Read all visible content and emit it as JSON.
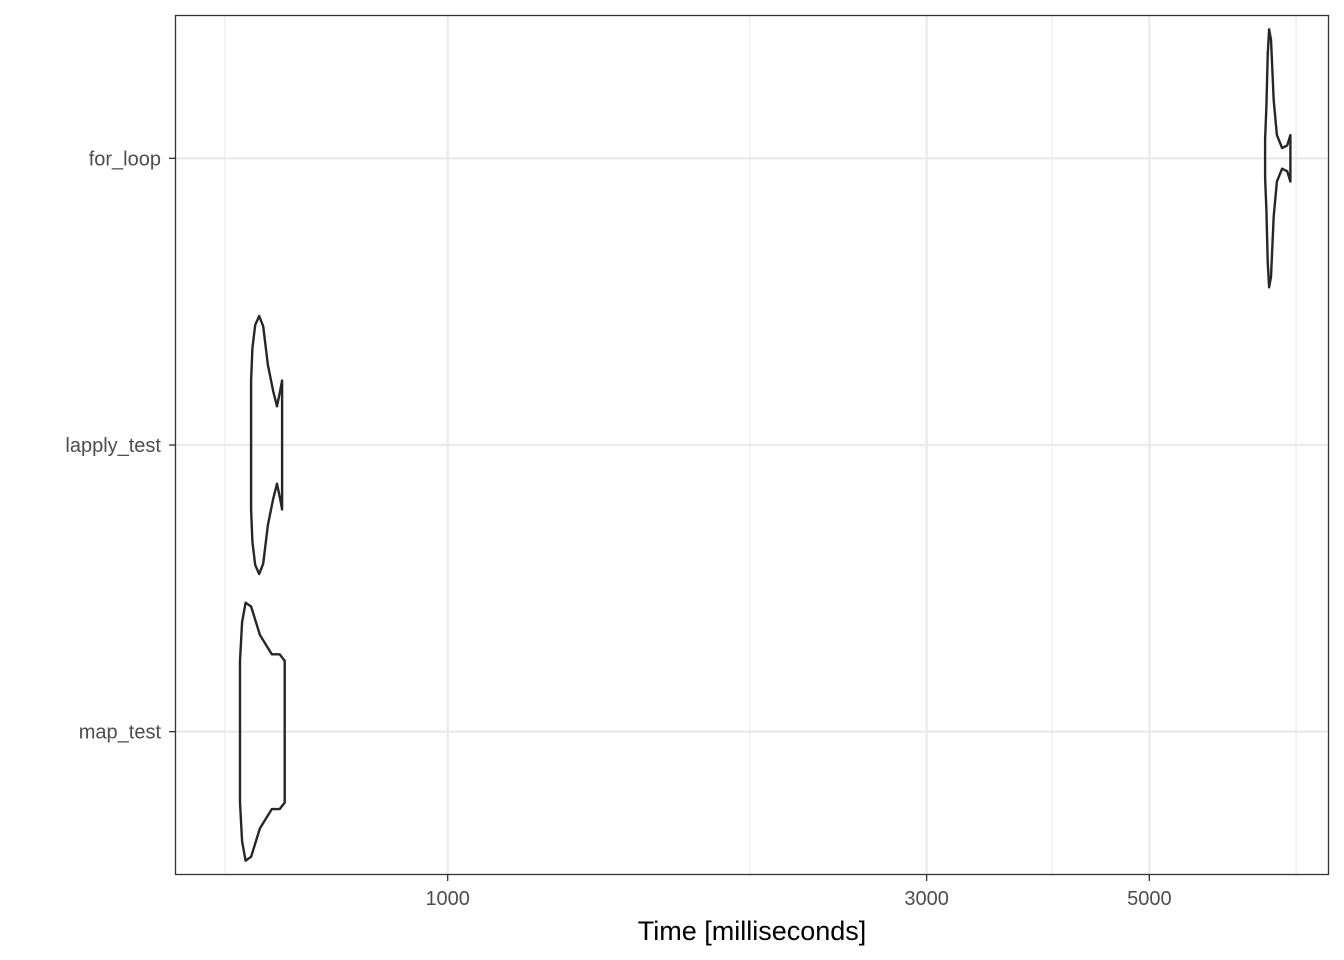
{
  "chart_data": {
    "type": "violin",
    "orientation": "horizontal",
    "xlabel": "Time [milliseconds]",
    "ylabel": "",
    "title": "",
    "x_scale": "log",
    "xlim": [
      535,
      7550
    ],
    "x_ticks": [
      1000,
      3000,
      5000
    ],
    "x_tick_labels": [
      "1000",
      "3000",
      "5000"
    ],
    "x_minor_gridlines": [
      600,
      2000,
      4000,
      7000
    ],
    "grid": true,
    "categories": [
      "map_test",
      "lapply_test",
      "for_loop"
    ],
    "series": [
      {
        "category": "map_test",
        "min": 621,
        "max": 688,
        "profile": [
          [
            621,
            0.55
          ],
          [
            624,
            0.85
          ],
          [
            629,
            1.0
          ],
          [
            637,
            0.97
          ],
          [
            650,
            0.75
          ],
          [
            668,
            0.6
          ],
          [
            680,
            0.6
          ],
          [
            688,
            0.55
          ]
        ]
      },
      {
        "category": "lapply_test",
        "min": 637,
        "max": 684,
        "profile": [
          [
            637,
            0.5
          ],
          [
            639,
            0.75
          ],
          [
            643,
            0.93
          ],
          [
            649,
            1.0
          ],
          [
            655,
            0.92
          ],
          [
            662,
            0.62
          ],
          [
            670,
            0.42
          ],
          [
            676,
            0.3
          ],
          [
            681,
            0.42
          ],
          [
            684,
            0.5
          ]
        ]
      },
      {
        "category": "for_loop",
        "min": 6520,
        "max": 6910,
        "profile": [
          [
            6520,
            0.15
          ],
          [
            6540,
            0.4
          ],
          [
            6560,
            0.8
          ],
          [
            6580,
            1.0
          ],
          [
            6610,
            0.92
          ],
          [
            6650,
            0.45
          ],
          [
            6700,
            0.18
          ],
          [
            6780,
            0.08
          ],
          [
            6860,
            0.1
          ],
          [
            6910,
            0.18
          ]
        ]
      }
    ]
  }
}
